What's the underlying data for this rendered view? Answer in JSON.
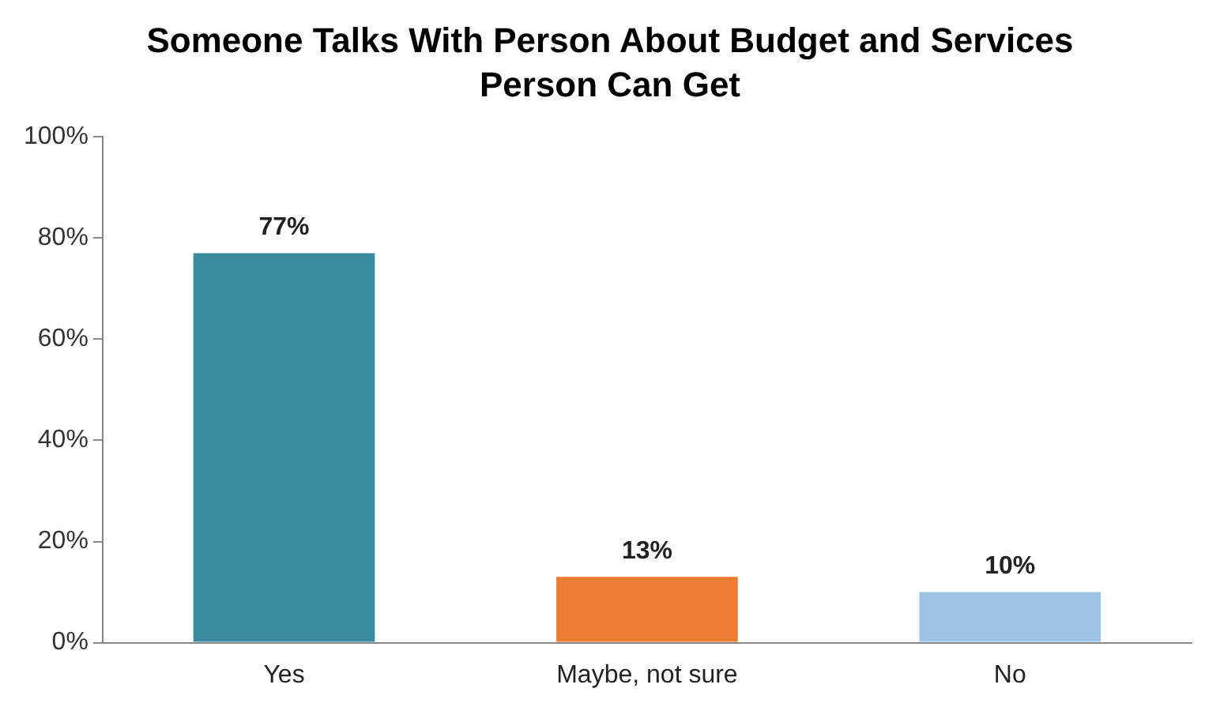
{
  "chart_data": {
    "type": "bar",
    "title": "Someone Talks With Person About Budget and Services Person Can Get",
    "categories": [
      "Yes",
      "Maybe, not sure",
      "No"
    ],
    "values": [
      77,
      13,
      10
    ],
    "colors": [
      "#3a8aa0",
      "#ed7d31",
      "#9dc3e6"
    ],
    "value_labels": [
      "77%",
      "13%",
      "10%"
    ],
    "ylim": [
      0,
      100
    ],
    "yticks": [
      {
        "value": 0,
        "label": "0%"
      },
      {
        "value": 20,
        "label": "20%"
      },
      {
        "value": 40,
        "label": "40%"
      },
      {
        "value": 60,
        "label": "60%"
      },
      {
        "value": 80,
        "label": "80%"
      },
      {
        "value": 100,
        "label": "100%"
      }
    ]
  }
}
